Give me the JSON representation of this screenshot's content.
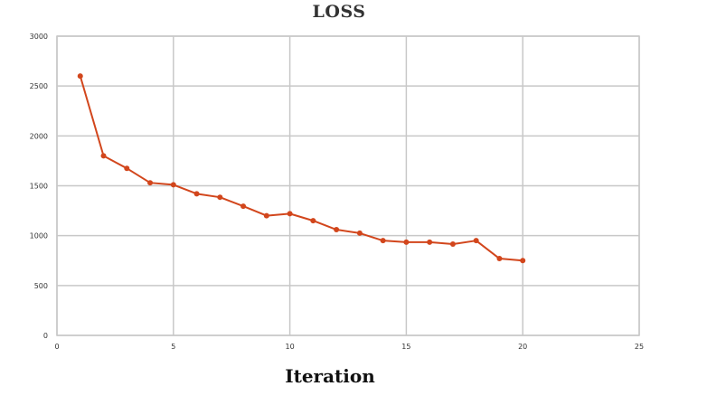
{
  "chart_data": {
    "type": "line",
    "title": "LOSS",
    "xlabel": "Iteration",
    "ylabel": "",
    "xlim": [
      0,
      25
    ],
    "ylim": [
      0,
      3000
    ],
    "xticks": [
      0,
      5,
      10,
      15,
      20,
      25
    ],
    "yticks": [
      0,
      500,
      1000,
      1500,
      2000,
      2500,
      3000
    ],
    "grid": true,
    "series": [
      {
        "color": "#d2461c",
        "x": [
          1,
          2,
          3,
          4,
          5,
          6,
          7,
          8,
          9,
          10,
          11,
          12,
          13,
          14,
          15,
          16,
          17,
          18,
          19,
          20
        ],
        "y": [
          2600,
          1800,
          1675,
          1530,
          1510,
          1420,
          1385,
          1295,
          1200,
          1220,
          1150,
          1060,
          1025,
          950,
          935,
          935,
          915,
          950,
          770,
          750
        ]
      }
    ]
  }
}
